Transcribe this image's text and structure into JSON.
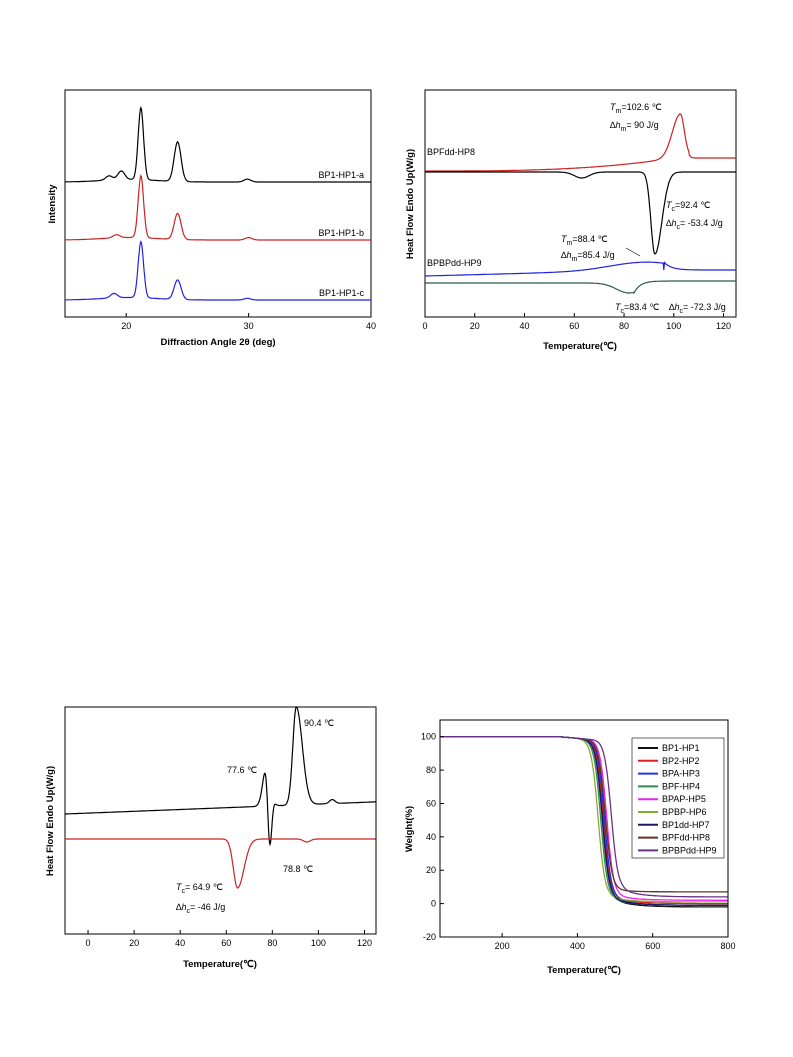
{
  "chart_data": [
    {
      "type": "line",
      "xlabel": "Diffraction Angle 2θ (deg)",
      "ylabel": "Intensity",
      "xlim": [
        15,
        40
      ],
      "xticks": [
        "20",
        "30",
        "40"
      ],
      "series": [
        {
          "name": "BP1-HP1-a",
          "color": "#000000",
          "peaks": [
            [
              18.6,
              0.06
            ],
            [
              19.6,
              0.12
            ],
            [
              21.2,
              1.0
            ],
            [
              24.2,
              0.55
            ],
            [
              29.9,
              0.04
            ]
          ]
        },
        {
          "name": "BP1-HP1-b",
          "color": "#cc2222",
          "peaks": [
            [
              19.2,
              0.05
            ],
            [
              21.2,
              1.0
            ],
            [
              24.2,
              0.42
            ],
            [
              30.0,
              0.04
            ]
          ]
        },
        {
          "name": "BP1-HP1-c",
          "color": "#2222dd",
          "peaks": [
            [
              19.0,
              0.08
            ],
            [
              21.2,
              1.0
            ],
            [
              24.2,
              0.35
            ],
            [
              29.9,
              0.03
            ]
          ]
        }
      ],
      "grid": false
    },
    {
      "type": "line",
      "xlabel": "Temperature(℃)",
      "ylabel": "Heat Flow Endo Up(W/g)",
      "xlim": [
        0,
        125
      ],
      "xticks": [
        "0",
        "20",
        "40",
        "60",
        "80",
        "100",
        "120"
      ],
      "series": [
        {
          "name": "BPFdd-HP8",
          "color": "#cc2222",
          "kind": "heating",
          "peak_T": 102.6
        },
        {
          "color": "#000000",
          "kind": "cooling",
          "peak_T": 92.4
        },
        {
          "name": "BPBPdd-HP9",
          "color": "#2222dd",
          "kind": "heating",
          "peak_T": 88.4
        },
        {
          "color": "#2a5a4a",
          "kind": "cooling",
          "peak_T": 83.4
        }
      ],
      "annotations": [
        {
          "id": "tm8",
          "T": "T",
          "sub": "m",
          "value": "=102.6 ℃"
        },
        {
          "id": "hm8",
          "D": "∆",
          "h": "h",
          "sub": "m",
          "value": "= 90 J/g"
        },
        {
          "id": "tc8",
          "T": "T",
          "sub": "c",
          "value": "=92.4 ℃"
        },
        {
          "id": "hc8",
          "D": "∆",
          "h": "h",
          "sub": "c",
          "value": "= -53.4 J/g"
        },
        {
          "id": "tm9",
          "T": "T",
          "sub": "m",
          "value": "=88.4 ℃"
        },
        {
          "id": "hm9",
          "D": "∆",
          "h": "h",
          "sub": "m",
          "value": "=85.4 J/g"
        },
        {
          "id": "tc9",
          "T": "T",
          "sub": "c",
          "value": "=83.4 ℃"
        },
        {
          "id": "hc9",
          "D": "∆",
          "h": "h",
          "sub": "c",
          "value": "= -72.3 J/g"
        }
      ],
      "grid": false
    },
    {
      "type": "line",
      "xlabel": "Temperature(℃)",
      "ylabel": "Heat Flow Endo Up(W/g)",
      "xlim": [
        -10,
        125
      ],
      "xticks": [
        "0",
        "20",
        "40",
        "60",
        "80",
        "100",
        "120"
      ],
      "series": [
        {
          "color": "#000000",
          "kind": "heating",
          "peaks_T": [
            77.6,
            90.4
          ],
          "exo_T": 78.8
        },
        {
          "color": "#cc2222",
          "kind": "cooling",
          "peak_T": 64.9
        }
      ],
      "annotations": [
        {
          "id": "p1",
          "text": "90.4 ℃"
        },
        {
          "id": "p2",
          "text": "77.6 ℃"
        },
        {
          "id": "p3",
          "text": "78.8 ℃"
        },
        {
          "id": "tc",
          "T": "T",
          "sub": "c",
          "value": "= 64.9 ℃"
        },
        {
          "id": "hc",
          "D": "∆",
          "h": "h",
          "sub": "c",
          "value": "= -46 J/g"
        }
      ],
      "grid": false
    },
    {
      "type": "line",
      "xlabel": "Temperature(℃)",
      "ylabel": "Weight(%)",
      "xlim": [
        35,
        800
      ],
      "ylim": [
        -20,
        110
      ],
      "xticks": [
        "200",
        "400",
        "600",
        "800"
      ],
      "yticks": [
        "-20",
        "0",
        "20",
        "40",
        "60",
        "80",
        "100"
      ],
      "legend": "top-right",
      "series": [
        {
          "name": "BP1-HP1",
          "color": "#111111",
          "onset": 468,
          "residue": -2
        },
        {
          "name": "BP2-HP2",
          "color": "#dd2222",
          "onset": 470,
          "residue": 0
        },
        {
          "name": "BPA-HP3",
          "color": "#2233dd",
          "onset": 472,
          "residue": -1
        },
        {
          "name": "BPF-HP4",
          "color": "#2e8b57",
          "onset": 462,
          "residue": -1
        },
        {
          "name": "BPAP-HP5",
          "color": "#ee22ee",
          "onset": 478,
          "residue": 2
        },
        {
          "name": "BPBP-HP6",
          "color": "#88aa33",
          "onset": 455,
          "residue": 1
        },
        {
          "name": "BP1dd-HP7",
          "color": "#1a1a66",
          "onset": 466,
          "residue": -1
        },
        {
          "name": "BPFdd-HP8",
          "color": "#663322",
          "onset": 474,
          "residue": 7
        },
        {
          "name": "BPBPdd-HP9",
          "color": "#663388",
          "onset": 490,
          "residue": 4
        }
      ],
      "grid": false
    }
  ]
}
